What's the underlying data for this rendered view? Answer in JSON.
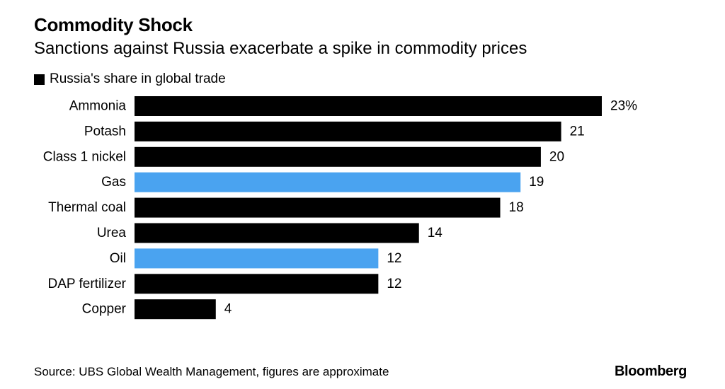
{
  "chart_data": {
    "type": "bar",
    "orientation": "horizontal",
    "title": "Commodity Shock",
    "subtitle": "Sanctions against Russia exacerbate a spike in commodity prices",
    "legend": [
      "Russia's share in global trade"
    ],
    "categories": [
      "Ammonia",
      "Potash",
      "Class 1 nickel",
      "Gas",
      "Thermal coal",
      "Urea",
      "Oil",
      "DAP fertilizer",
      "Copper"
    ],
    "value_labels": [
      "23%",
      "21",
      "20",
      "19",
      "18",
      "14",
      "12",
      "12",
      "4"
    ],
    "series": [
      {
        "name": "Russia's share in global trade",
        "values": [
          23,
          21,
          20,
          19,
          18,
          14,
          12,
          12,
          4
        ]
      }
    ],
    "highlighted": [
      false,
      false,
      false,
      true,
      false,
      false,
      true,
      false,
      false
    ],
    "xlim": [
      0,
      23
    ],
    "grid": false,
    "legend_placement": "top-left"
  },
  "colors": {
    "bar": "#000000",
    "highlight": "#4aa3f0",
    "text": "#000000",
    "background": "#ffffff"
  },
  "source": "Source: UBS Global Wealth Management, figures are approximate",
  "brand": "Bloomberg"
}
